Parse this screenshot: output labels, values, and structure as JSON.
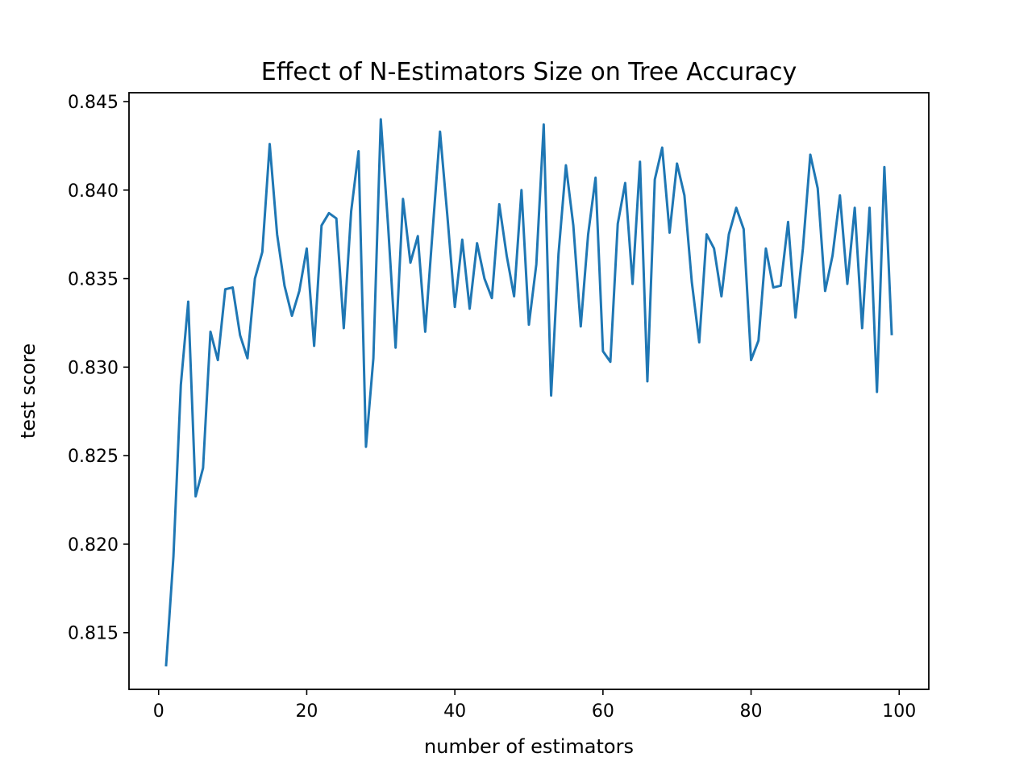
{
  "chart_data": {
    "type": "line",
    "title": "Effect of N-Estimators Size on Tree Accuracy",
    "xlabel": "number of estimators",
    "ylabel": "test score",
    "xlim": [
      -4,
      104
    ],
    "ylim": [
      0.8118,
      0.8455
    ],
    "xticks": [
      0,
      20,
      40,
      60,
      80,
      100
    ],
    "xtick_labels": [
      "0",
      "20",
      "40",
      "60",
      "80",
      "100"
    ],
    "yticks": [
      0.815,
      0.82,
      0.825,
      0.83,
      0.835,
      0.84,
      0.845
    ],
    "ytick_labels": [
      "0.815",
      "0.820",
      "0.825",
      "0.830",
      "0.835",
      "0.840",
      "0.845"
    ],
    "grid": false,
    "legend": false,
    "color": "#1f77b4",
    "x": [
      1,
      2,
      3,
      4,
      5,
      6,
      7,
      8,
      9,
      10,
      11,
      12,
      13,
      14,
      15,
      16,
      17,
      18,
      19,
      20,
      21,
      22,
      23,
      24,
      25,
      26,
      27,
      28,
      29,
      30,
      31,
      32,
      33,
      34,
      35,
      36,
      37,
      38,
      39,
      40,
      41,
      42,
      43,
      44,
      45,
      46,
      47,
      48,
      49,
      50,
      51,
      52,
      53,
      54,
      55,
      56,
      57,
      58,
      59,
      60,
      61,
      62,
      63,
      64,
      65,
      66,
      67,
      68,
      69,
      70,
      71,
      72,
      73,
      74,
      75,
      76,
      77,
      78,
      79,
      80,
      81,
      82,
      83,
      84,
      85,
      86,
      87,
      88,
      89,
      90,
      91,
      92,
      93,
      94,
      95,
      96,
      97,
      98,
      99
    ],
    "series": [
      {
        "values": [
          0.8131,
          0.8193,
          0.829,
          0.8337,
          0.8227,
          0.8243,
          0.832,
          0.8304,
          0.8344,
          0.8345,
          0.8318,
          0.8305,
          0.835,
          0.8365,
          0.8426,
          0.8375,
          0.8346,
          0.8329,
          0.8343,
          0.8367,
          0.8312,
          0.838,
          0.8387,
          0.8384,
          0.8322,
          0.8388,
          0.8422,
          0.8255,
          0.8305,
          0.844,
          0.8379,
          0.8311,
          0.8395,
          0.8359,
          0.8374,
          0.832,
          0.8377,
          0.8433,
          0.8385,
          0.8334,
          0.8372,
          0.8333,
          0.837,
          0.835,
          0.8339,
          0.8392,
          0.8363,
          0.834,
          0.84,
          0.8324,
          0.8358,
          0.8437,
          0.8284,
          0.8364,
          0.8414,
          0.838,
          0.8323,
          0.8375,
          0.8407,
          0.8309,
          0.8303,
          0.8381,
          0.8404,
          0.8347,
          0.8416,
          0.8292,
          0.8406,
          0.8424,
          0.8376,
          0.8415,
          0.8397,
          0.8348,
          0.8314,
          0.8375,
          0.8367,
          0.834,
          0.8375,
          0.839,
          0.8378,
          0.8304,
          0.8315,
          0.8367,
          0.8345,
          0.8346,
          0.8382,
          0.8328,
          0.8367,
          0.842,
          0.8401,
          0.8343,
          0.8363,
          0.8397,
          0.8347,
          0.839,
          0.8322,
          0.839,
          0.8286,
          0.8413,
          0.8318
        ]
      }
    ]
  }
}
